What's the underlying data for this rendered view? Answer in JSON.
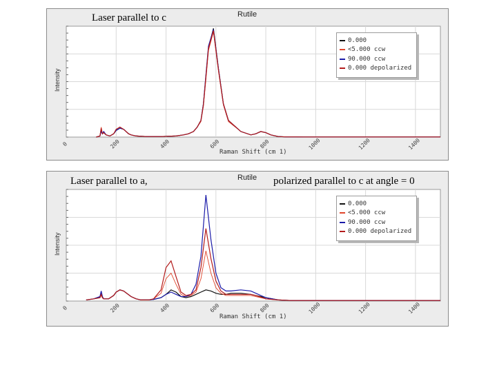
{
  "overlay": {
    "top_label": "Laser parallel to c",
    "bottom_label_left": "Laser parallel to a,",
    "bottom_label_right": "polarized parallel to c at angle = 0"
  },
  "colors": {
    "panel_bg": "#ececec",
    "plot_bg": "#ffffff",
    "grid": "#d8d8d8",
    "series": [
      "#111111",
      "#e0442a",
      "#1a1aa8",
      "#b31a1a"
    ]
  },
  "chart_data": [
    {
      "type": "line",
      "title": "Rutile",
      "xlabel": "Raman Shift (cm 1)",
      "ylabel": "Intensity",
      "xlim": [
        0,
        1500
      ],
      "ylim": [
        0,
        1
      ],
      "xticks": [
        0,
        200,
        400,
        600,
        800,
        1000,
        1200,
        1400
      ],
      "xtick_labels": [
        "0",
        "200",
        "400",
        "600",
        "800",
        "1000",
        "1200",
        "1400"
      ],
      "grid": true,
      "legend_position": "top-right",
      "series": [
        {
          "name": "0.000",
          "x": [
            120,
            135,
            140,
            145,
            150,
            160,
            175,
            190,
            200,
            215,
            230,
            250,
            260,
            280,
            320,
            380,
            440,
            470,
            490,
            510,
            525,
            540,
            550,
            560,
            570,
            590,
            610,
            630,
            650,
            700,
            740,
            760,
            780,
            800,
            820,
            850,
            880,
            920,
            950,
            1000,
            1100,
            1200,
            1300,
            1400,
            1500
          ],
          "y": [
            0,
            0.01,
            0.06,
            0.03,
            0.04,
            0.02,
            0.01,
            0.03,
            0.06,
            0.08,
            0.07,
            0.03,
            0.02,
            0.01,
            0.005,
            0.005,
            0.01,
            0.02,
            0.03,
            0.05,
            0.09,
            0.15,
            0.3,
            0.55,
            0.8,
            0.98,
            0.62,
            0.3,
            0.15,
            0.05,
            0.02,
            0.03,
            0.05,
            0.04,
            0.02,
            0.005,
            0.002,
            0.002,
            0.001,
            0.001,
            0.001,
            0.001,
            0.001,
            0.001,
            0.001
          ]
        },
        {
          "name": "<5.000 ccw",
          "x": [
            120,
            135,
            140,
            145,
            150,
            160,
            175,
            190,
            200,
            215,
            230,
            250,
            260,
            280,
            320,
            380,
            440,
            470,
            490,
            510,
            525,
            540,
            550,
            560,
            570,
            590,
            610,
            630,
            650,
            700,
            740,
            760,
            780,
            800,
            820,
            850,
            880,
            920,
            950,
            1000,
            1100,
            1200,
            1300,
            1400,
            1500
          ],
          "y": [
            0,
            0.01,
            0.09,
            0.03,
            0.04,
            0.02,
            0.01,
            0.03,
            0.07,
            0.09,
            0.07,
            0.03,
            0.02,
            0.01,
            0.005,
            0.005,
            0.01,
            0.02,
            0.03,
            0.05,
            0.09,
            0.14,
            0.28,
            0.52,
            0.78,
            0.95,
            0.6,
            0.29,
            0.14,
            0.05,
            0.02,
            0.03,
            0.05,
            0.04,
            0.02,
            0.005,
            0.002,
            0.002,
            0.001,
            0.001,
            0.001,
            0.001,
            0.001,
            0.001,
            0.001
          ]
        },
        {
          "name": "90.000 ccw",
          "x": [
            120,
            135,
            140,
            145,
            150,
            160,
            175,
            190,
            200,
            215,
            230,
            250,
            260,
            280,
            320,
            380,
            440,
            470,
            490,
            510,
            525,
            540,
            550,
            560,
            570,
            590,
            610,
            630,
            650,
            700,
            740,
            760,
            780,
            800,
            820,
            850,
            880,
            920,
            950,
            1000,
            1100,
            1200,
            1300,
            1400,
            1500
          ],
          "y": [
            0,
            0.01,
            0.05,
            0.03,
            0.05,
            0.02,
            0.01,
            0.03,
            0.06,
            0.08,
            0.07,
            0.03,
            0.02,
            0.01,
            0.005,
            0.005,
            0.01,
            0.02,
            0.03,
            0.05,
            0.09,
            0.15,
            0.3,
            0.56,
            0.82,
            0.97,
            0.62,
            0.3,
            0.15,
            0.05,
            0.02,
            0.03,
            0.05,
            0.04,
            0.02,
            0.005,
            0.002,
            0.002,
            0.001,
            0.001,
            0.001,
            0.001,
            0.001,
            0.001,
            0.001
          ]
        },
        {
          "name": "0.000 depolarized",
          "x": [
            120,
            135,
            140,
            145,
            150,
            160,
            175,
            190,
            200,
            215,
            230,
            250,
            260,
            280,
            320,
            380,
            440,
            470,
            490,
            510,
            525,
            540,
            550,
            560,
            570,
            590,
            610,
            630,
            650,
            700,
            740,
            760,
            780,
            800,
            820,
            850,
            880,
            920,
            950,
            1000,
            1100,
            1200,
            1300,
            1400,
            1500
          ],
          "y": [
            0,
            0.01,
            0.08,
            0.03,
            0.04,
            0.02,
            0.01,
            0.03,
            0.07,
            0.09,
            0.07,
            0.03,
            0.02,
            0.01,
            0.005,
            0.005,
            0.01,
            0.02,
            0.03,
            0.05,
            0.09,
            0.15,
            0.29,
            0.54,
            0.8,
            0.96,
            0.61,
            0.3,
            0.15,
            0.05,
            0.02,
            0.03,
            0.05,
            0.04,
            0.02,
            0.005,
            0.002,
            0.002,
            0.001,
            0.001,
            0.001,
            0.001,
            0.001,
            0.001,
            0.001
          ]
        }
      ]
    },
    {
      "type": "line",
      "title": "Rutile",
      "xlabel": "Raman Shift (cm 1)",
      "ylabel": "Intensity",
      "xlim": [
        0,
        1500
      ],
      "ylim": [
        0,
        1
      ],
      "xticks": [
        0,
        200,
        400,
        600,
        800,
        1000,
        1200,
        1400
      ],
      "xtick_labels": [
        "0",
        "200",
        "400",
        "600",
        "800",
        "1000",
        "1200",
        "1400"
      ],
      "grid": true,
      "legend_position": "top-right",
      "series": [
        {
          "name": "0.000",
          "x": [
            80,
            110,
            135,
            140,
            145,
            150,
            170,
            190,
            200,
            215,
            230,
            260,
            280,
            300,
            330,
            350,
            380,
            400,
            420,
            440,
            460,
            480,
            500,
            520,
            540,
            560,
            580,
            600,
            620,
            640,
            660,
            700,
            740,
            760,
            800,
            850,
            900,
            1000,
            1100,
            1200,
            1300,
            1400,
            1500
          ],
          "y": [
            0.01,
            0.02,
            0.03,
            0.06,
            0.03,
            0.02,
            0.02,
            0.05,
            0.08,
            0.1,
            0.09,
            0.04,
            0.02,
            0.01,
            0.01,
            0.015,
            0.03,
            0.06,
            0.1,
            0.08,
            0.04,
            0.03,
            0.04,
            0.06,
            0.08,
            0.1,
            0.09,
            0.07,
            0.06,
            0.06,
            0.07,
            0.07,
            0.06,
            0.05,
            0.03,
            0.01,
            0.005,
            0.005,
            0.005,
            0.005,
            0.005,
            0.005,
            0.005
          ]
        },
        {
          "name": "<5.000 ccw",
          "x": [
            80,
            110,
            135,
            140,
            145,
            150,
            170,
            190,
            200,
            215,
            230,
            260,
            280,
            300,
            330,
            350,
            380,
            400,
            420,
            440,
            460,
            480,
            500,
            520,
            540,
            560,
            580,
            600,
            620,
            640,
            660,
            700,
            740,
            760,
            800,
            850,
            900,
            1000,
            1100,
            1200,
            1300,
            1400,
            1500
          ],
          "y": [
            0.01,
            0.02,
            0.03,
            0.05,
            0.03,
            0.02,
            0.02,
            0.05,
            0.08,
            0.1,
            0.09,
            0.04,
            0.02,
            0.01,
            0.01,
            0.02,
            0.07,
            0.2,
            0.25,
            0.15,
            0.06,
            0.04,
            0.05,
            0.08,
            0.2,
            0.45,
            0.25,
            0.12,
            0.07,
            0.05,
            0.05,
            0.05,
            0.05,
            0.04,
            0.02,
            0.01,
            0.005,
            0.005,
            0.005,
            0.005,
            0.005,
            0.005,
            0.005
          ]
        },
        {
          "name": "90.000 ccw",
          "x": [
            80,
            110,
            135,
            140,
            145,
            150,
            170,
            190,
            200,
            215,
            230,
            260,
            280,
            300,
            330,
            350,
            380,
            400,
            420,
            440,
            460,
            480,
            500,
            520,
            540,
            560,
            580,
            600,
            620,
            640,
            660,
            700,
            740,
            760,
            800,
            850,
            900,
            1000,
            1100,
            1200,
            1300,
            1400,
            1500
          ],
          "y": [
            0.01,
            0.02,
            0.04,
            0.09,
            0.04,
            0.02,
            0.02,
            0.05,
            0.08,
            0.1,
            0.09,
            0.04,
            0.02,
            0.01,
            0.01,
            0.015,
            0.03,
            0.06,
            0.08,
            0.06,
            0.04,
            0.04,
            0.06,
            0.15,
            0.4,
            0.95,
            0.55,
            0.25,
            0.12,
            0.09,
            0.09,
            0.1,
            0.09,
            0.07,
            0.03,
            0.01,
            0.005,
            0.005,
            0.005,
            0.005,
            0.005,
            0.005,
            0.005
          ]
        },
        {
          "name": "0.000 depolarized",
          "x": [
            80,
            110,
            135,
            140,
            145,
            150,
            170,
            190,
            200,
            215,
            230,
            260,
            280,
            300,
            330,
            350,
            380,
            400,
            420,
            440,
            460,
            480,
            500,
            520,
            540,
            560,
            580,
            600,
            620,
            640,
            660,
            700,
            740,
            760,
            800,
            850,
            900,
            1000,
            1100,
            1200,
            1300,
            1400,
            1500
          ],
          "y": [
            0.01,
            0.02,
            0.03,
            0.06,
            0.03,
            0.02,
            0.02,
            0.05,
            0.08,
            0.1,
            0.09,
            0.04,
            0.02,
            0.01,
            0.01,
            0.02,
            0.1,
            0.3,
            0.36,
            0.22,
            0.08,
            0.05,
            0.06,
            0.1,
            0.3,
            0.65,
            0.38,
            0.18,
            0.09,
            0.06,
            0.06,
            0.06,
            0.06,
            0.05,
            0.02,
            0.01,
            0.005,
            0.005,
            0.005,
            0.005,
            0.005,
            0.005,
            0.005
          ]
        }
      ]
    }
  ]
}
